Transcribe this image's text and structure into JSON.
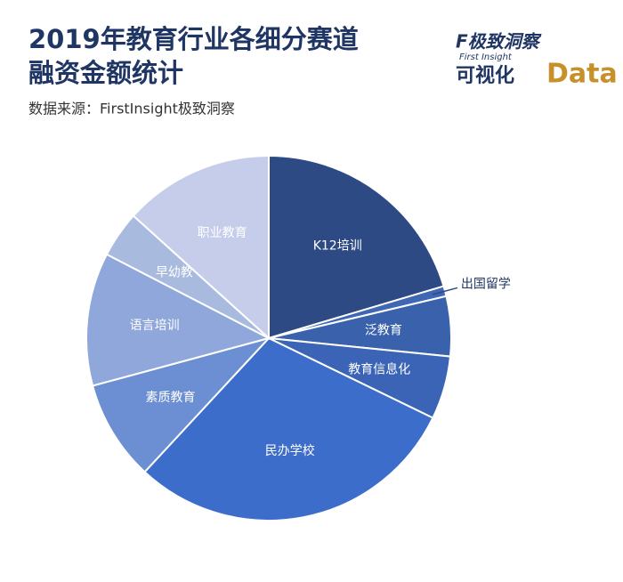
{
  "chart_data": {
    "type": "pie",
    "title": [
      "2019年教育行业各细分赛道",
      "融资金额统计"
    ],
    "subtitle": "数据来源：FirstInsight极致洞察",
    "logo": {
      "brand": "F极致洞察",
      "brand_en": "First Insight",
      "tag": "可视化",
      "word": "Data"
    },
    "categories": [
      "K12培训",
      "出国留学",
      "泛教育",
      "教育信息化",
      "民办学校",
      "素质教育",
      "语言培训",
      "早幼教",
      "职业教育"
    ],
    "values": [
      20.4,
      0.9,
      5.3,
      5.6,
      29.7,
      8.9,
      11.8,
      4.1,
      13.3
    ],
    "colors": [
      "#2d4a84",
      "#3f67b3",
      "#3a61ab",
      "#3b64b6",
      "#3d6dcb",
      "#6c8ed2",
      "#8fa7da",
      "#a9badf",
      "#c5cdea"
    ]
  }
}
